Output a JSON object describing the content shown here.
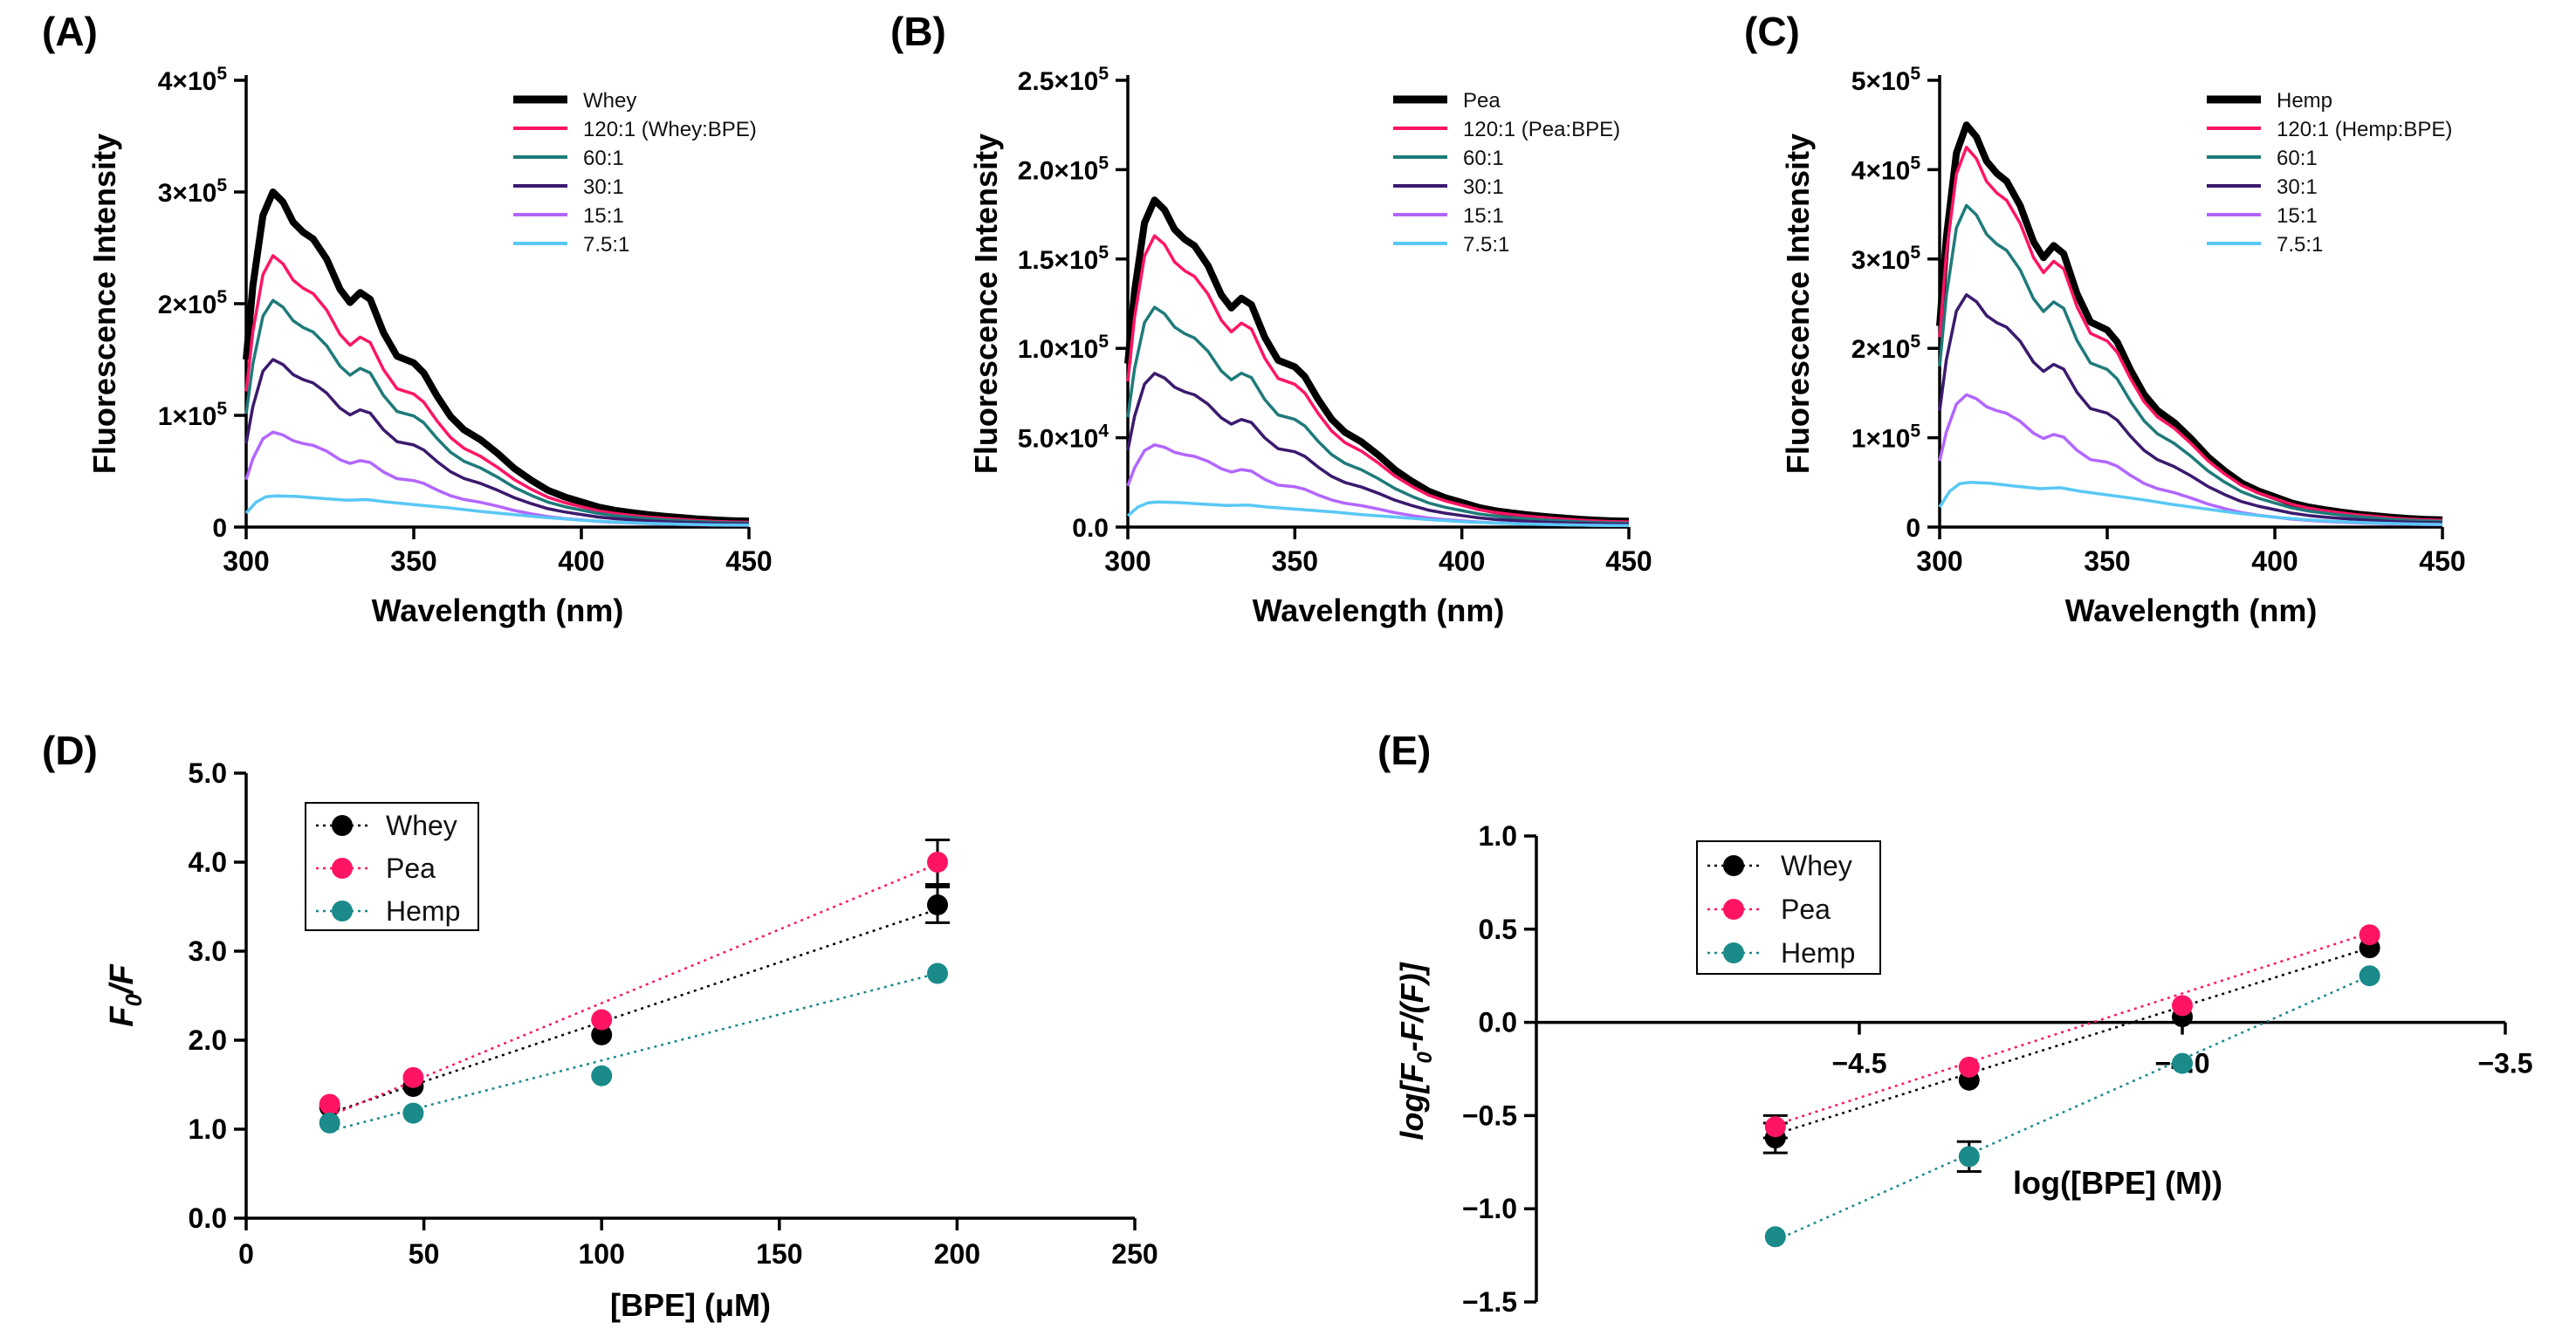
{
  "chart_data": [
    {
      "panel": "(A)",
      "type": "line",
      "xlabel": "Wavelength (nm)",
      "ylabel": "Fluorescence Intensity",
      "xlim": [
        300,
        450
      ],
      "ylim": [
        0,
        400000
      ],
      "xticks": [
        300,
        350,
        400,
        450
      ],
      "yticks": [
        {
          "value": 0,
          "label": "0",
          "sup": ""
        },
        {
          "value": 100000,
          "label": "1×10",
          "sup": "5"
        },
        {
          "value": 200000,
          "label": "2×10",
          "sup": "5"
        },
        {
          "value": 300000,
          "label": "3×10",
          "sup": "5"
        },
        {
          "value": 400000,
          "label": "4×10",
          "sup": "5"
        }
      ],
      "series": [
        {
          "name": "Whey",
          "peak": 300000,
          "color": "#000000"
        },
        {
          "name": "120:1 (Whey:BPE)",
          "peak": 243000,
          "color": "#ff1464"
        },
        {
          "name": "60:1",
          "peak": 203000,
          "color": "#1f7a7a"
        },
        {
          "name": "30:1",
          "peak": 150000,
          "color": "#3b1a6e"
        },
        {
          "name": "15:1",
          "peak": 85000,
          "color": "#b266ff"
        },
        {
          "name": "7.5:1",
          "peak": 28000,
          "color": "#59c8f5"
        }
      ]
    },
    {
      "panel": "(B)",
      "type": "line",
      "xlabel": "Wavelength (nm)",
      "ylabel": "Fluorescence Intensity",
      "xlim": [
        300,
        450
      ],
      "ylim": [
        0,
        250000
      ],
      "xticks": [
        300,
        350,
        400,
        450
      ],
      "yticks": [
        {
          "value": 0,
          "label": "0.0",
          "sup": ""
        },
        {
          "value": 50000,
          "label": "5.0×10",
          "sup": "4"
        },
        {
          "value": 100000,
          "label": "1.0×10",
          "sup": "5"
        },
        {
          "value": 150000,
          "label": "1.5×10",
          "sup": "5"
        },
        {
          "value": 200000,
          "label": "2.0×10",
          "sup": "5"
        },
        {
          "value": 250000,
          "label": "2.5×10",
          "sup": "5"
        }
      ],
      "series": [
        {
          "name": "Pea",
          "peak": 183000,
          "color": "#000000"
        },
        {
          "name": "120:1 (Pea:BPE)",
          "peak": 163000,
          "color": "#ff1464"
        },
        {
          "name": "60:1",
          "peak": 123000,
          "color": "#1f7a7a"
        },
        {
          "name": "30:1",
          "peak": 86000,
          "color": "#3b1a6e"
        },
        {
          "name": "15:1",
          "peak": 46000,
          "color": "#b266ff"
        },
        {
          "name": "7.5:1",
          "peak": 14000,
          "color": "#59c8f5"
        }
      ]
    },
    {
      "panel": "(C)",
      "type": "line",
      "xlabel": "Wavelength (nm)",
      "ylabel": "Fluorescence Intensity",
      "xlim": [
        300,
        450
      ],
      "ylim": [
        0,
        500000
      ],
      "xticks": [
        300,
        350,
        400,
        450
      ],
      "yticks": [
        {
          "value": 0,
          "label": "0",
          "sup": ""
        },
        {
          "value": 100000,
          "label": "1×10",
          "sup": "5"
        },
        {
          "value": 200000,
          "label": "2×10",
          "sup": "5"
        },
        {
          "value": 300000,
          "label": "3×10",
          "sup": "5"
        },
        {
          "value": 400000,
          "label": "4×10",
          "sup": "5"
        },
        {
          "value": 500000,
          "label": "5×10",
          "sup": "5"
        }
      ],
      "series": [
        {
          "name": "Hemp",
          "peak": 450000,
          "color": "#000000"
        },
        {
          "name": "120:1 (Hemp:BPE)",
          "peak": 425000,
          "color": "#ff1464"
        },
        {
          "name": "60:1",
          "peak": 360000,
          "color": "#1f7a7a"
        },
        {
          "name": "30:1",
          "peak": 260000,
          "color": "#3b1a6e"
        },
        {
          "name": "15:1",
          "peak": 148000,
          "color": "#b266ff"
        },
        {
          "name": "7.5:1",
          "peak": 50000,
          "color": "#59c8f5"
        }
      ]
    },
    {
      "panel": "(D)",
      "type": "scatter",
      "xlabel": "[BPE] (μM)",
      "ylabel_main": "F",
      "ylabel_sub": "0",
      "ylabel_tail": "/F",
      "xlim": [
        0,
        250
      ],
      "ylim": [
        0,
        5
      ],
      "xticks": [
        0,
        50,
        100,
        150,
        200,
        250
      ],
      "yticks": [
        "0.0",
        "1.0",
        "2.0",
        "3.0",
        "4.0",
        "5.0"
      ],
      "series": [
        {
          "name": "Whey",
          "color": "#000000",
          "x": [
            23.5,
            47,
            100,
            194.5
          ],
          "y": [
            1.25,
            1.48,
            2.06,
            3.52
          ],
          "err": [
            0.05,
            0.06,
            0.05,
            0.2
          ],
          "fit": [
            [
              23.5,
              1.18
            ],
            [
              194.5,
              3.47
            ]
          ]
        },
        {
          "name": "Pea",
          "color": "#ff1464",
          "x": [
            23.5,
            47,
            100,
            194.5
          ],
          "y": [
            1.28,
            1.58,
            2.23,
            4.0
          ],
          "err": [
            0.04,
            0.05,
            0.06,
            0.25
          ],
          "fit": [
            [
              23.5,
              1.15
            ],
            [
              194.5,
              3.98
            ]
          ]
        },
        {
          "name": "Hemp",
          "color": "#1a8a8a",
          "x": [
            23.5,
            47,
            100,
            194.5
          ],
          "y": [
            1.07,
            1.18,
            1.6,
            2.75
          ],
          "err": [
            0.03,
            0.03,
            0.04,
            0.05
          ],
          "fit": [
            [
              23.5,
              0.98
            ],
            [
              194.5,
              2.75
            ]
          ]
        }
      ]
    },
    {
      "panel": "(E)",
      "type": "scatter",
      "xlabel": "log([BPE] (M))",
      "ylabel": "log[F0-F/(F)]",
      "ylabel_parts": [
        "log[F",
        "0",
        "-F/(F)]"
      ],
      "xlim": [
        -5.0,
        -3.5
      ],
      "ylim": [
        -1.5,
        1.0
      ],
      "xticks": [
        {
          "value": -4.5,
          "label": "−4.5"
        },
        {
          "value": -4.0,
          "label": "−4.0"
        },
        {
          "value": -3.5,
          "label": "−3.5"
        }
      ],
      "yticks": [
        {
          "value": 1.0,
          "label": "1.0"
        },
        {
          "value": 0.5,
          "label": "0.5"
        },
        {
          "value": 0.0,
          "label": "0.0"
        },
        {
          "value": -0.5,
          "label": "−0.5"
        },
        {
          "value": -1.0,
          "label": "−1.0"
        },
        {
          "value": -1.5,
          "label": "−1.5"
        }
      ],
      "series": [
        {
          "name": "Whey",
          "color": "#000000",
          "x": [
            -4.63,
            -4.33,
            -4.0,
            -3.71
          ],
          "y": [
            -0.62,
            -0.31,
            0.03,
            0.4
          ],
          "err": [
            0.08,
            0.04,
            0.03,
            0.03
          ],
          "fit": [
            [
              -4.63,
              -0.6
            ],
            [
              -3.71,
              0.4
            ]
          ]
        },
        {
          "name": "Pea",
          "color": "#ff1464",
          "x": [
            -4.63,
            -4.33,
            -4.0,
            -3.71
          ],
          "y": [
            -0.56,
            -0.24,
            0.09,
            0.47
          ],
          "err": [
            0.06,
            0.03,
            0.03,
            0.03
          ],
          "fit": [
            [
              -4.63,
              -0.55
            ],
            [
              -3.71,
              0.48
            ]
          ]
        },
        {
          "name": "Hemp",
          "color": "#1a8a8a",
          "x": [
            -4.63,
            -4.33,
            -4.0,
            -3.71
          ],
          "y": [
            -1.15,
            -0.72,
            -0.22,
            0.25
          ],
          "err": [
            0.02,
            0.08,
            0.03,
            0.03
          ],
          "fit": [
            [
              -4.63,
              -1.17
            ],
            [
              -3.71,
              0.25
            ]
          ]
        }
      ]
    }
  ]
}
